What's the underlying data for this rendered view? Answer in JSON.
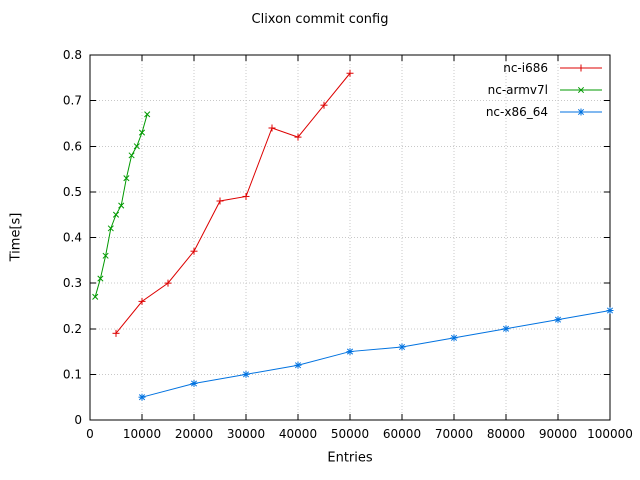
{
  "chart_data": {
    "type": "line",
    "title": "Clixon commit config",
    "xlabel": "Entries",
    "ylabel": "Time[s]",
    "xlim": [
      0,
      100000
    ],
    "ylim": [
      0,
      0.8
    ],
    "xticks": [
      0,
      10000,
      20000,
      30000,
      40000,
      50000,
      60000,
      70000,
      80000,
      90000,
      100000
    ],
    "yticks": [
      0,
      0.1,
      0.2,
      0.3,
      0.4,
      0.5,
      0.6,
      0.7,
      0.8
    ],
    "grid": true,
    "legend_position": "top-right",
    "grid_color": "#c8c8c8",
    "axis_color": "#000000",
    "series": [
      {
        "name": "nc-i686",
        "color": "#dd0000",
        "marker": "plus",
        "x": [
          5000,
          10000,
          15000,
          20000,
          25000,
          30000,
          35000,
          40000,
          45000,
          50000
        ],
        "y": [
          0.19,
          0.26,
          0.3,
          0.37,
          0.48,
          0.49,
          0.64,
          0.62,
          0.69,
          0.76
        ]
      },
      {
        "name": "nc-armv7l",
        "color": "#009900",
        "marker": "cross",
        "x": [
          1000,
          2000,
          3000,
          4000,
          5000,
          6000,
          7000,
          8000,
          9000,
          10000,
          11000
        ],
        "y": [
          0.27,
          0.31,
          0.36,
          0.42,
          0.45,
          0.47,
          0.53,
          0.58,
          0.6,
          0.63,
          0.67
        ]
      },
      {
        "name": "nc-x86_64",
        "color": "#0072e0",
        "marker": "star",
        "x": [
          10000,
          20000,
          30000,
          40000,
          50000,
          60000,
          70000,
          80000,
          90000,
          100000
        ],
        "y": [
          0.05,
          0.08,
          0.1,
          0.12,
          0.15,
          0.16,
          0.18,
          0.2,
          0.22,
          0.24
        ]
      }
    ]
  }
}
